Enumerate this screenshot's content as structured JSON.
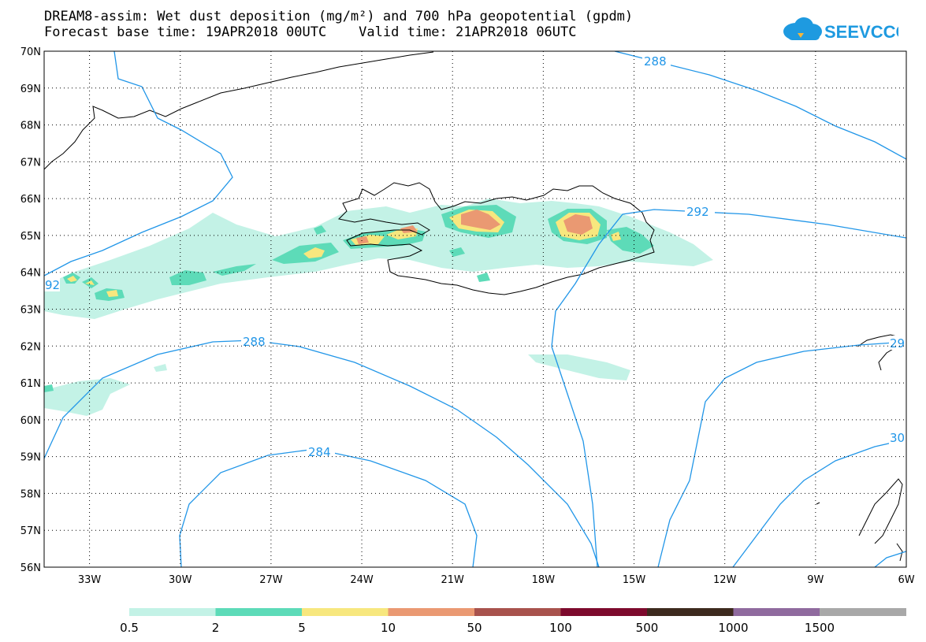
{
  "header": {
    "title_line1": "DREAM8-assim: Wet dust deposition (mg/m²) and 700 hPa geopotential (gpdm)",
    "title_line2": "Forecast base time: 19APR2018 00UTC    Valid time: 21APR2018 06UTC"
  },
  "logo": {
    "text": "SEEVCCC",
    "icon": "cloud-icon",
    "color": "#1e9ae0"
  },
  "map": {
    "lat_labels": [
      "70N",
      "69N",
      "68N",
      "67N",
      "66N",
      "65N",
      "64N",
      "63N",
      "62N",
      "61N",
      "60N",
      "59N",
      "58N",
      "57N",
      "56N"
    ],
    "lon_labels": [
      "33W",
      "30W",
      "27W",
      "24W",
      "21W",
      "18W",
      "15W",
      "12W",
      "9W",
      "6W"
    ],
    "lat_range": [
      56,
      70
    ],
    "lon_range": [
      -34.5,
      -6
    ],
    "grid": "dotted",
    "contour_color": "#2196e8",
    "contour_labels": [
      "288",
      "292",
      "92",
      "288",
      "284",
      "29",
      "30"
    ]
  },
  "colorbar": {
    "labels": [
      "0.5",
      "2",
      "5",
      "10",
      "50",
      "100",
      "500",
      "1000",
      "1500"
    ],
    "colors": [
      "#c3f2e6",
      "#5ddbb8",
      "#f7e77e",
      "#ea9972",
      "#a8524d",
      "#7d0a2d",
      "#3d2a1e",
      "#8f6a9e",
      "#a8a8a8"
    ]
  }
}
